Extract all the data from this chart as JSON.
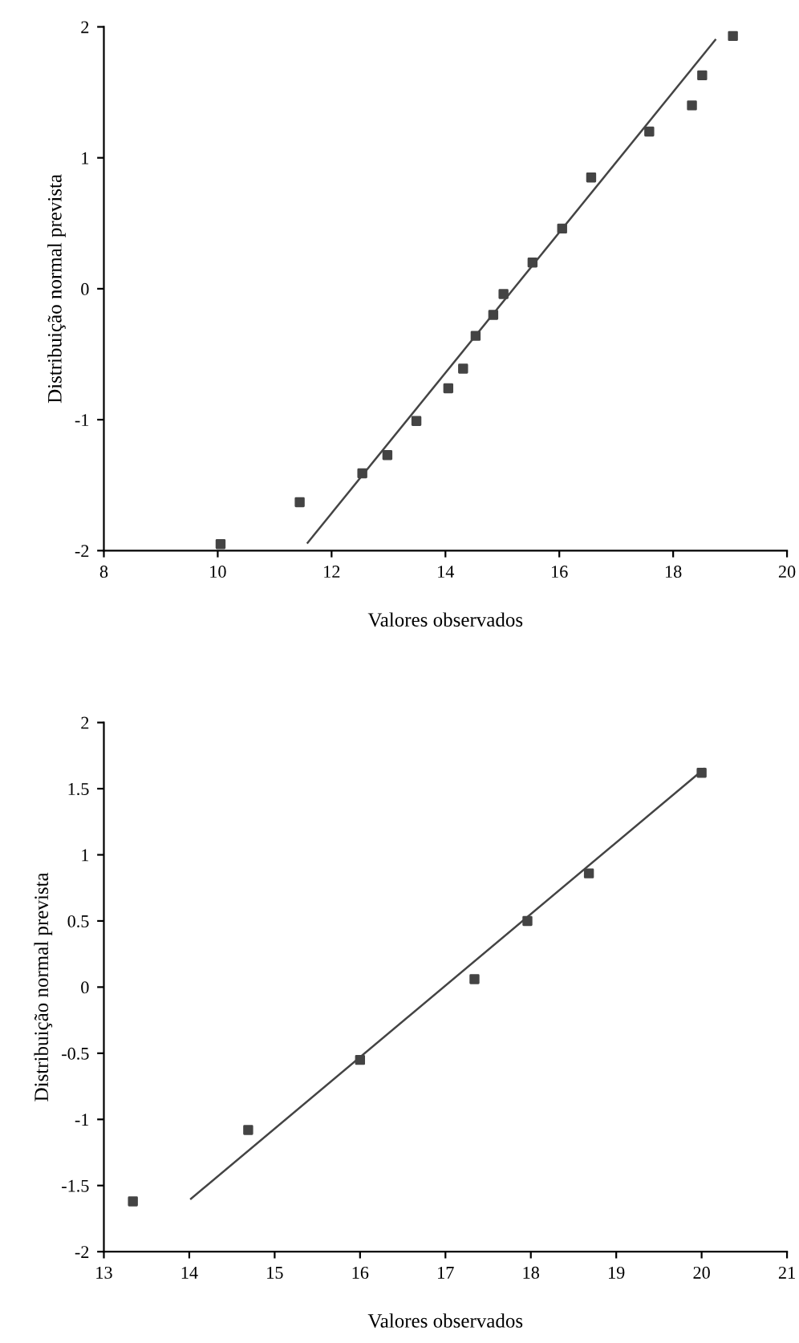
{
  "chart_data": [
    {
      "type": "scatter",
      "xlabel": "Valores observados",
      "ylabel": "Distribuição normal prevista",
      "xlim": [
        8,
        20
      ],
      "ylim": [
        -2,
        2
      ],
      "xticks": [
        8,
        10,
        12,
        14,
        16,
        18,
        20
      ],
      "yticks": [
        -2,
        -1,
        0,
        1,
        2
      ],
      "grid": false,
      "legend": false,
      "series": [
        {
          "marker": "square",
          "color": "#444444",
          "x": [
            10.05,
            11.44,
            12.54,
            12.98,
            13.49,
            14.05,
            14.31,
            14.53,
            14.84,
            15.02,
            15.53,
            16.05,
            16.56,
            17.58,
            18.33,
            18.51,
            19.05
          ],
          "values": [
            -1.95,
            -1.63,
            -1.41,
            -1.27,
            -1.01,
            -0.76,
            -0.61,
            -0.36,
            -0.2,
            -0.04,
            0.2,
            0.46,
            0.85,
            1.2,
            1.4,
            1.63,
            1.93
          ]
        },
        {
          "type": "line",
          "marker": "none",
          "line_style": "solid",
          "color": "#444444",
          "x": [
            11.58,
            18.74
          ],
          "values": [
            -1.94,
            1.9
          ]
        }
      ]
    },
    {
      "type": "scatter",
      "xlabel": "Valores observados",
      "ylabel": "Distribuição normal prevista",
      "xlim": [
        13,
        21
      ],
      "ylim": [
        -2,
        2
      ],
      "xticks": [
        13,
        14,
        15,
        16,
        17,
        18,
        19,
        20,
        21
      ],
      "yticks": [
        -2,
        -1.5,
        -1,
        -0.5,
        0,
        0.5,
        1,
        1.5,
        2
      ],
      "grid": false,
      "legend": false,
      "series": [
        {
          "marker": "square",
          "color": "#444444",
          "x": [
            13.34,
            14.69,
            16.0,
            17.34,
            17.96,
            18.68,
            20.0
          ],
          "values": [
            -1.62,
            -1.08,
            -0.55,
            0.06,
            0.5,
            0.86,
            1.62
          ]
        },
        {
          "type": "line",
          "marker": "none",
          "line_style": "solid",
          "color": "#444444",
          "x": [
            14.02,
            20.03
          ],
          "values": [
            -1.6,
            1.65
          ]
        }
      ]
    }
  ]
}
